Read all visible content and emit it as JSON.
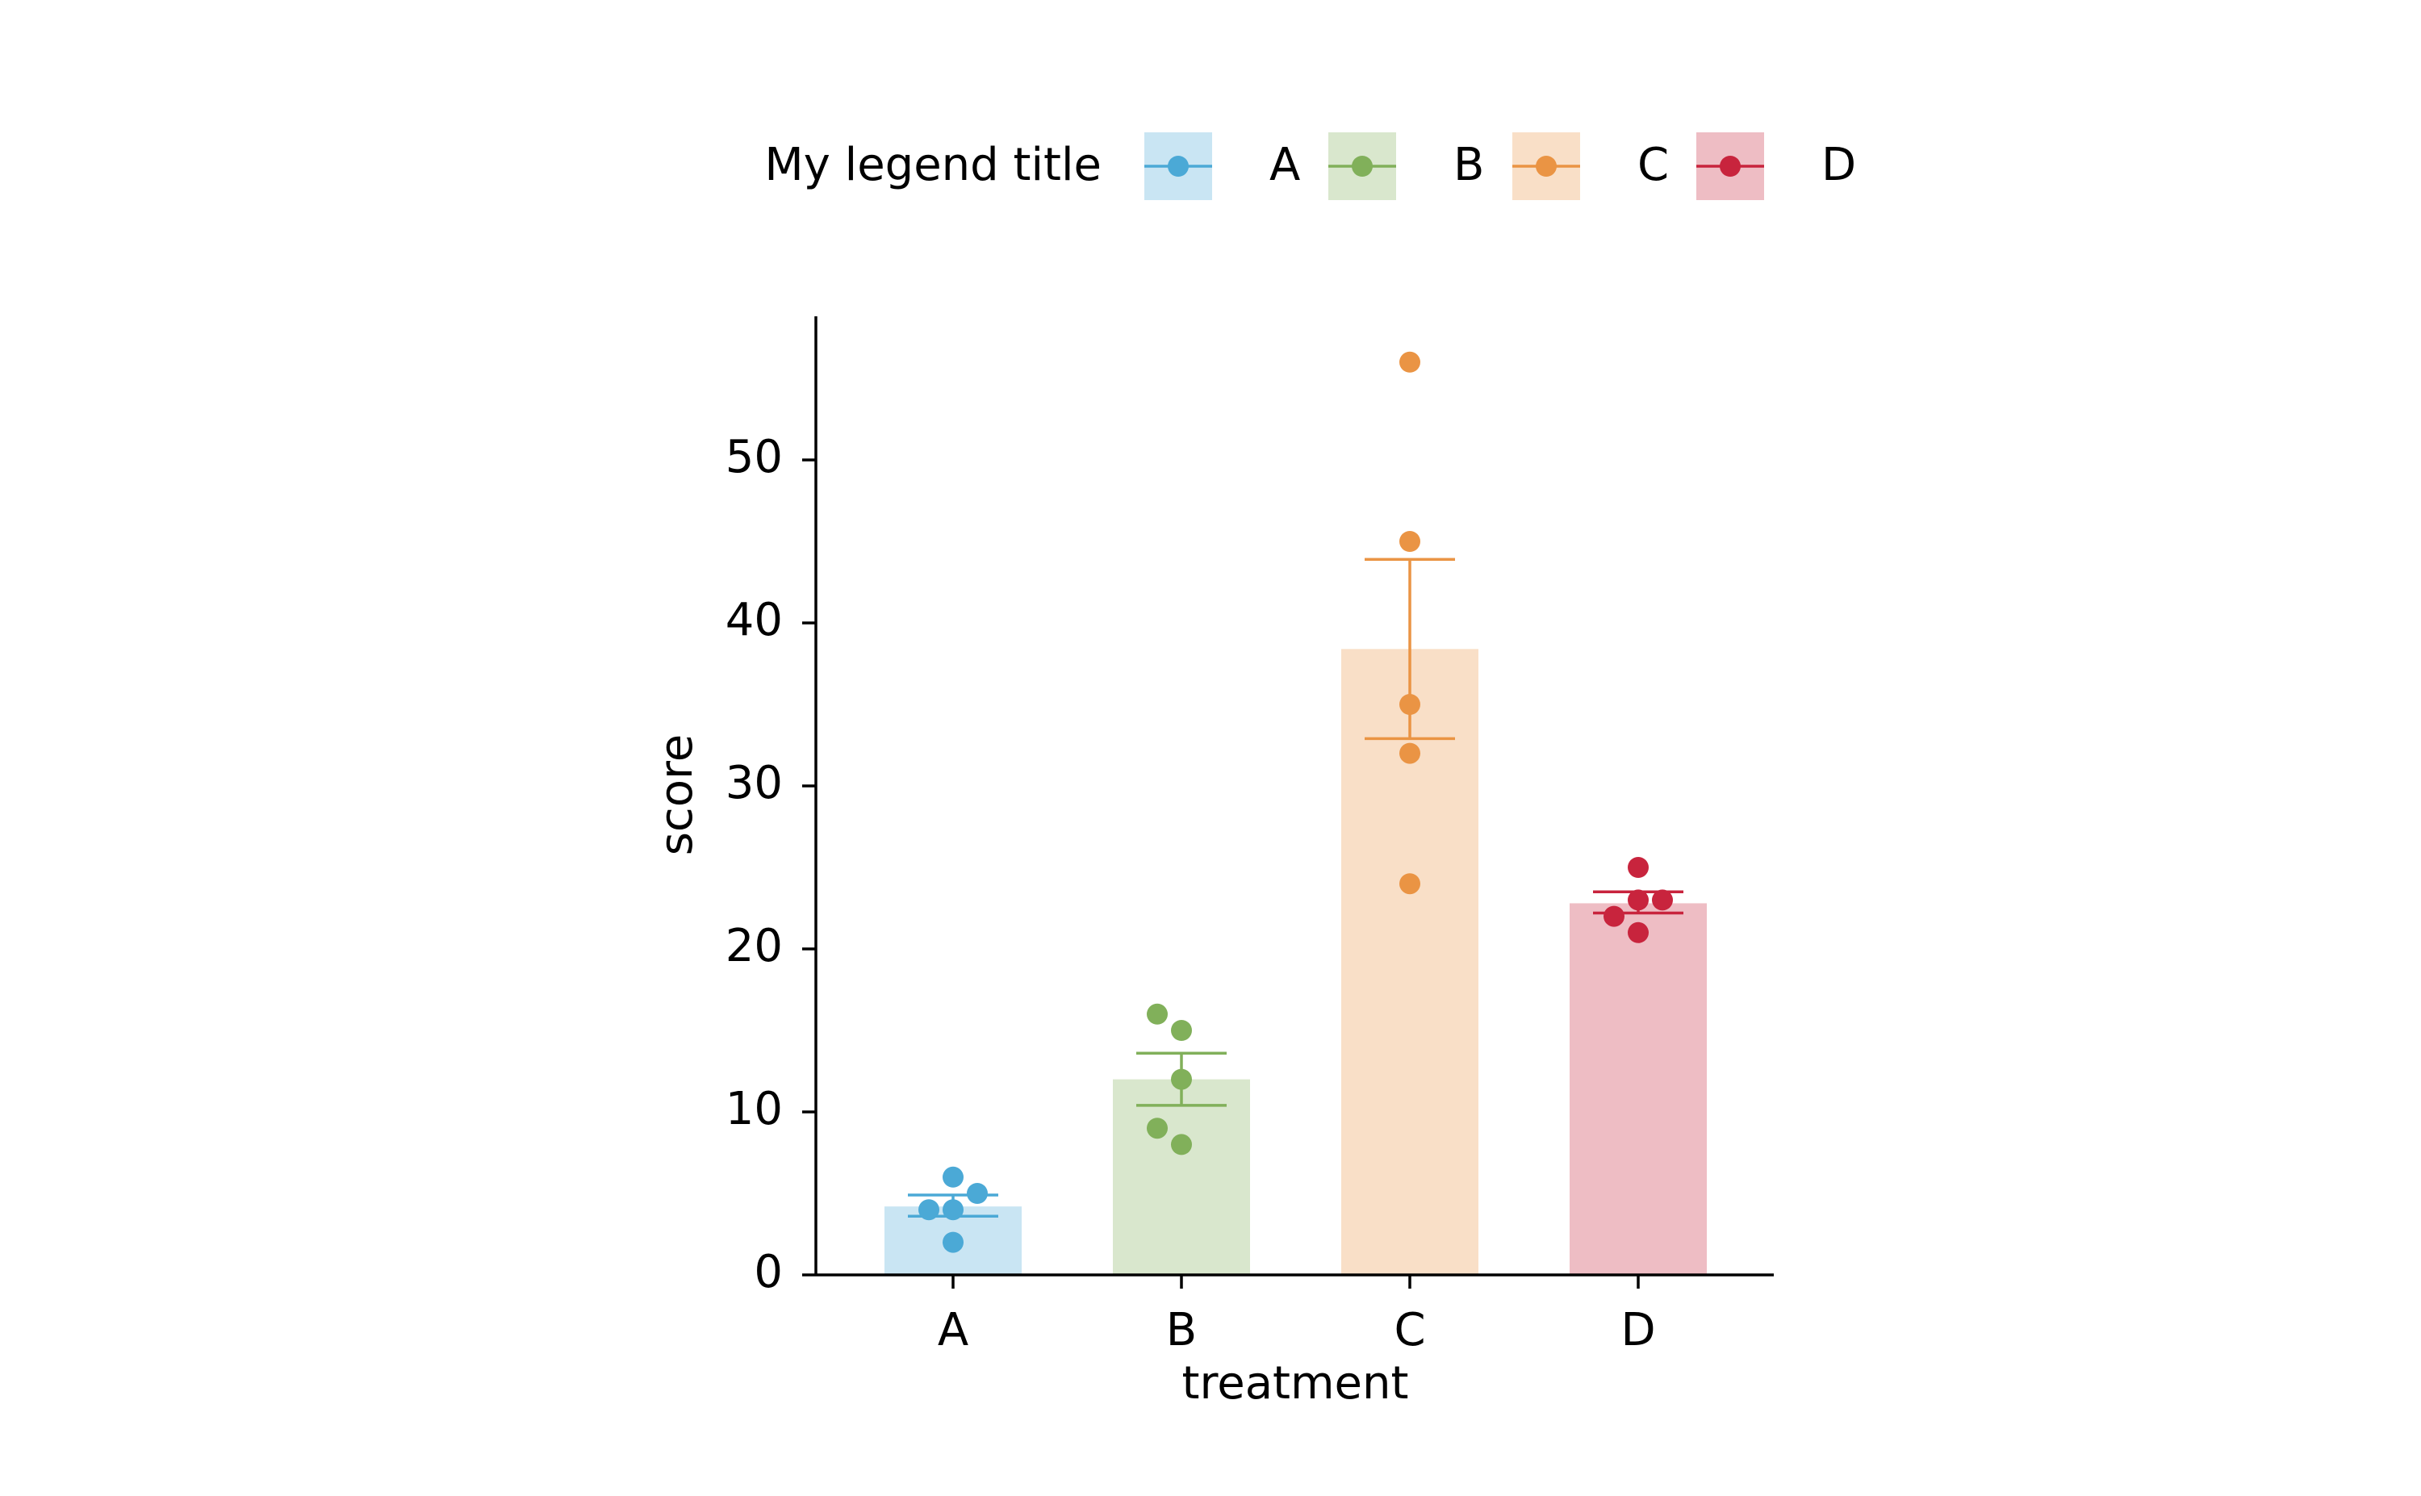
{
  "chart_data": {
    "type": "bar",
    "title": "",
    "xlabel": "treatment",
    "ylabel": "score",
    "ylim": [
      0,
      58.5
    ],
    "yticks": [
      0,
      10,
      20,
      30,
      40,
      50
    ],
    "ytick_labels": [
      "0",
      "10",
      "20",
      "30",
      "40",
      "50"
    ],
    "categories": [
      "A",
      "B",
      "C",
      "D"
    ],
    "values": [
      4.2,
      12,
      38.4,
      22.8
    ],
    "error_bars": [
      {
        "low": 3.6,
        "high": 4.9
      },
      {
        "low": 10.4,
        "high": 13.6
      },
      {
        "low": 32.9,
        "high": 43.9
      },
      {
        "low": 22.2,
        "high": 23.5
      }
    ],
    "points": [
      [
        2,
        4,
        4,
        5,
        6
      ],
      [
        8,
        9,
        12,
        15,
        16
      ],
      [
        24,
        32,
        35,
        45,
        56
      ],
      [
        21,
        22,
        23,
        23,
        25
      ]
    ],
    "colors": [
      "#4ba9d6",
      "#81b05a",
      "#ea9444",
      "#c8243d"
    ],
    "bar_alpha": 0.3,
    "grid": false,
    "legend": {
      "title": "My legend title",
      "placement": "top-center",
      "entries": [
        "A",
        "B",
        "C",
        "D"
      ]
    }
  }
}
